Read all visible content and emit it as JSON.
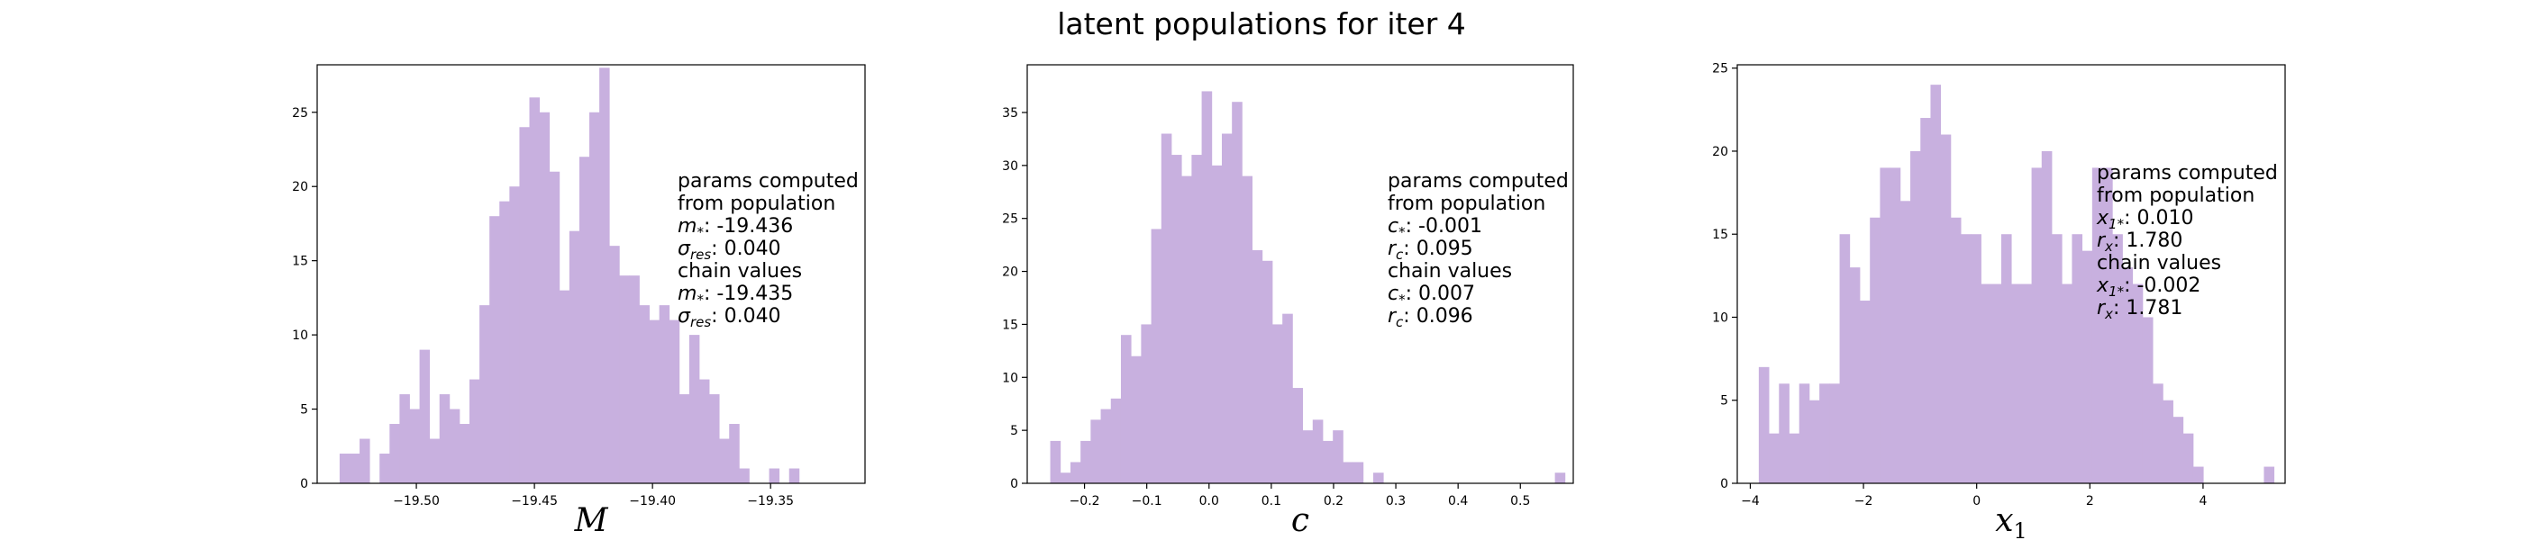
{
  "figure": {
    "suptitle": "latent populations for iter 4",
    "bar_color": "#c8b0df"
  },
  "chart_data": [
    {
      "type": "bar",
      "subtype": "histogram",
      "xlabel": "M",
      "xlim": [
        -19.542,
        -19.31
      ],
      "ylim": [
        0,
        28.2
      ],
      "xticks": [
        -19.5,
        -19.45,
        -19.4,
        -19.35
      ],
      "xtick_labels": [
        "−19.50",
        "−19.45",
        "−19.40",
        "−19.35"
      ],
      "yticks": [
        0,
        5,
        10,
        15,
        20,
        25
      ],
      "ytick_labels": [
        "0",
        "5",
        "10",
        "15",
        "20",
        "25"
      ],
      "bin_start": -19.5325,
      "bin_width": 0.00423,
      "values": [
        2,
        2,
        3,
        0,
        2,
        4,
        6,
        5,
        9,
        3,
        6,
        5,
        4,
        7,
        12,
        18,
        19,
        20,
        24,
        26,
        25,
        21,
        13,
        17,
        22,
        25,
        28,
        16,
        14,
        14,
        12,
        11,
        12,
        11,
        6,
        10,
        7,
        6,
        3,
        4,
        1,
        0,
        0,
        1,
        0,
        1
      ],
      "annotation": [
        {
          "text": "params computed",
          "sub": ""
        },
        {
          "text": " from population",
          "sub": ""
        },
        {
          "var": "m",
          "sub": "*",
          "text": ":  -19.436"
        },
        {
          "var": "σ",
          "sub": "res",
          "text": ":    0.040"
        },
        {
          "text": "chain values",
          "sub": ""
        },
        {
          "var": "m",
          "sub": "*",
          "text": ":  -19.435"
        },
        {
          "var": "σ",
          "sub": "res",
          "text": ":    0.040"
        }
      ]
    },
    {
      "type": "bar",
      "subtype": "histogram",
      "xlabel": "c",
      "xlim": [
        -0.292,
        0.585
      ],
      "ylim": [
        0,
        39.5
      ],
      "xticks": [
        -0.2,
        -0.1,
        0.0,
        0.1,
        0.2,
        0.3,
        0.4,
        0.5
      ],
      "xtick_labels": [
        "−0.2",
        "−0.1",
        "0.0",
        "0.1",
        "0.2",
        "0.3",
        "0.4",
        "0.5"
      ],
      "yticks": [
        0,
        5,
        10,
        15,
        20,
        25,
        30,
        35
      ],
      "ytick_labels": [
        "0",
        "5",
        "10",
        "15",
        "20",
        "25",
        "30",
        "35"
      ],
      "bin_start": -0.255,
      "bin_width": 0.01621,
      "values": [
        4,
        1,
        2,
        4,
        6,
        7,
        8,
        14,
        12,
        15,
        24,
        33,
        31,
        29,
        31,
        37,
        30,
        33,
        36,
        29,
        22,
        21,
        15,
        16,
        9,
        5,
        6,
        4,
        5,
        2,
        2,
        0,
        1,
        0,
        0,
        0,
        0,
        0,
        0,
        0,
        0,
        0,
        0,
        0,
        0,
        0,
        0,
        0,
        0,
        0,
        1
      ],
      "annotation": [
        {
          "text": "params computed",
          "sub": ""
        },
        {
          "text": " from population",
          "sub": ""
        },
        {
          "var": "c",
          "sub": "*",
          "text": ":   -0.001"
        },
        {
          "var": "r",
          "sub": "c",
          "text": ":    0.095"
        },
        {
          "text": "chain values",
          "sub": ""
        },
        {
          "var": "c",
          "sub": "*",
          "text": ":    0.007"
        },
        {
          "var": "r",
          "sub": "c",
          "text": ":    0.096"
        }
      ]
    },
    {
      "type": "bar",
      "subtype": "histogram",
      "xlabel": "x",
      "xlabel_sub": "1",
      "xlim": [
        -4.23,
        5.45
      ],
      "ylim": [
        0,
        25.2
      ],
      "xticks": [
        -4,
        -2,
        0,
        2,
        4
      ],
      "xtick_labels": [
        "−4",
        "−2",
        "0",
        "2",
        "4"
      ],
      "yticks": [
        0,
        5,
        10,
        15,
        20,
        25
      ],
      "ytick_labels": [
        "0",
        "5",
        "10",
        "15",
        "20",
        "25"
      ],
      "bin_start": -3.85,
      "bin_width": 0.1785,
      "values": [
        7,
        3,
        6,
        3,
        6,
        5,
        6,
        6,
        15,
        13,
        11,
        16,
        19,
        19,
        17,
        20,
        22,
        24,
        21,
        16,
        15,
        15,
        12,
        12,
        15,
        12,
        12,
        19,
        20,
        15,
        12,
        15,
        14,
        19,
        19,
        15,
        13,
        12,
        10,
        6,
        5,
        4,
        3,
        1,
        0,
        0,
        0,
        0,
        0,
        0,
        1,
        0,
        0
      ],
      "annotation": [
        {
          "text": "params computed",
          "sub": ""
        },
        {
          "text": " from population",
          "sub": ""
        },
        {
          "var": "x",
          "sub": "1*",
          "text": ":    0.010"
        },
        {
          "var": "r",
          "sub": "x",
          "text": ":    1.780"
        },
        {
          "text": "chain values",
          "sub": ""
        },
        {
          "var": "x",
          "sub": "1*",
          "text": ":   -0.002"
        },
        {
          "var": "r",
          "sub": "x",
          "text": ":    1.781"
        }
      ]
    }
  ]
}
